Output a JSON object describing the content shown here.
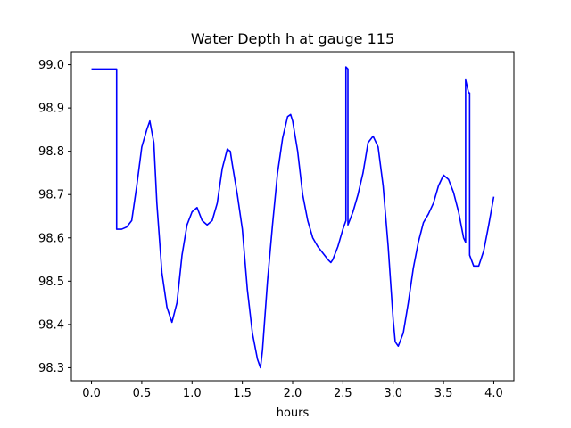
{
  "chart_data": {
    "type": "line",
    "title": "Water Depth h at gauge 115",
    "xlabel": "hours",
    "ylabel": "",
    "xlim": [
      -0.2,
      4.2
    ],
    "ylim": [
      98.27,
      99.03
    ],
    "xticks": [
      0.0,
      0.5,
      1.0,
      1.5,
      2.0,
      2.5,
      3.0,
      3.5,
      4.0
    ],
    "xtick_labels": [
      "0.0",
      "0.5",
      "1.0",
      "1.5",
      "2.0",
      "2.5",
      "3.0",
      "3.5",
      "4.0"
    ],
    "yticks": [
      98.3,
      98.4,
      98.5,
      98.6,
      98.7,
      98.8,
      98.9,
      99.0
    ],
    "ytick_labels": [
      "98.3",
      "98.4",
      "98.5",
      "98.6",
      "98.7",
      "98.8",
      "98.9",
      "99.0"
    ],
    "grid": false,
    "series": [
      {
        "color": "#0000ff",
        "x": [
          0.0,
          0.25,
          0.25,
          0.3,
          0.35,
          0.4,
          0.45,
          0.5,
          0.55,
          0.58,
          0.62,
          0.65,
          0.7,
          0.75,
          0.8,
          0.85,
          0.9,
          0.95,
          1.0,
          1.05,
          1.1,
          1.15,
          1.2,
          1.25,
          1.3,
          1.35,
          1.38,
          1.4,
          1.45,
          1.5,
          1.55,
          1.6,
          1.65,
          1.68,
          1.7,
          1.75,
          1.8,
          1.85,
          1.9,
          1.95,
          1.98,
          2.0,
          2.05,
          2.1,
          2.15,
          2.2,
          2.25,
          2.3,
          2.35,
          2.38,
          2.4,
          2.45,
          2.5,
          2.53,
          2.53,
          2.55,
          2.55,
          2.6,
          2.65,
          2.7,
          2.75,
          2.8,
          2.85,
          2.9,
          2.95,
          3.0,
          3.02,
          3.05,
          3.1,
          3.15,
          3.2,
          3.25,
          3.3,
          3.35,
          3.4,
          3.45,
          3.5,
          3.55,
          3.6,
          3.65,
          3.7,
          3.72,
          3.72,
          3.75,
          3.76,
          3.76,
          3.8,
          3.85,
          3.9,
          3.95,
          4.0
        ],
        "y": [
          98.99,
          98.99,
          98.62,
          98.62,
          98.625,
          98.64,
          98.72,
          98.81,
          98.85,
          98.87,
          98.82,
          98.68,
          98.52,
          98.44,
          98.405,
          98.45,
          98.56,
          98.63,
          98.66,
          98.67,
          98.64,
          98.63,
          98.64,
          98.68,
          98.76,
          98.805,
          98.8,
          98.77,
          98.7,
          98.62,
          98.48,
          98.38,
          98.32,
          98.3,
          98.34,
          98.5,
          98.63,
          98.75,
          98.83,
          98.88,
          98.885,
          98.87,
          98.8,
          98.7,
          98.64,
          98.6,
          98.58,
          98.565,
          98.55,
          98.543,
          98.55,
          98.58,
          98.62,
          98.64,
          98.995,
          98.99,
          98.63,
          98.66,
          98.7,
          98.75,
          98.82,
          98.835,
          98.81,
          98.72,
          98.58,
          98.41,
          98.36,
          98.35,
          98.38,
          98.45,
          98.53,
          98.59,
          98.635,
          98.655,
          98.68,
          98.72,
          98.745,
          98.735,
          98.705,
          98.66,
          98.6,
          98.59,
          98.965,
          98.935,
          98.935,
          98.56,
          98.535,
          98.535,
          98.57,
          98.63,
          98.695
        ]
      }
    ]
  }
}
